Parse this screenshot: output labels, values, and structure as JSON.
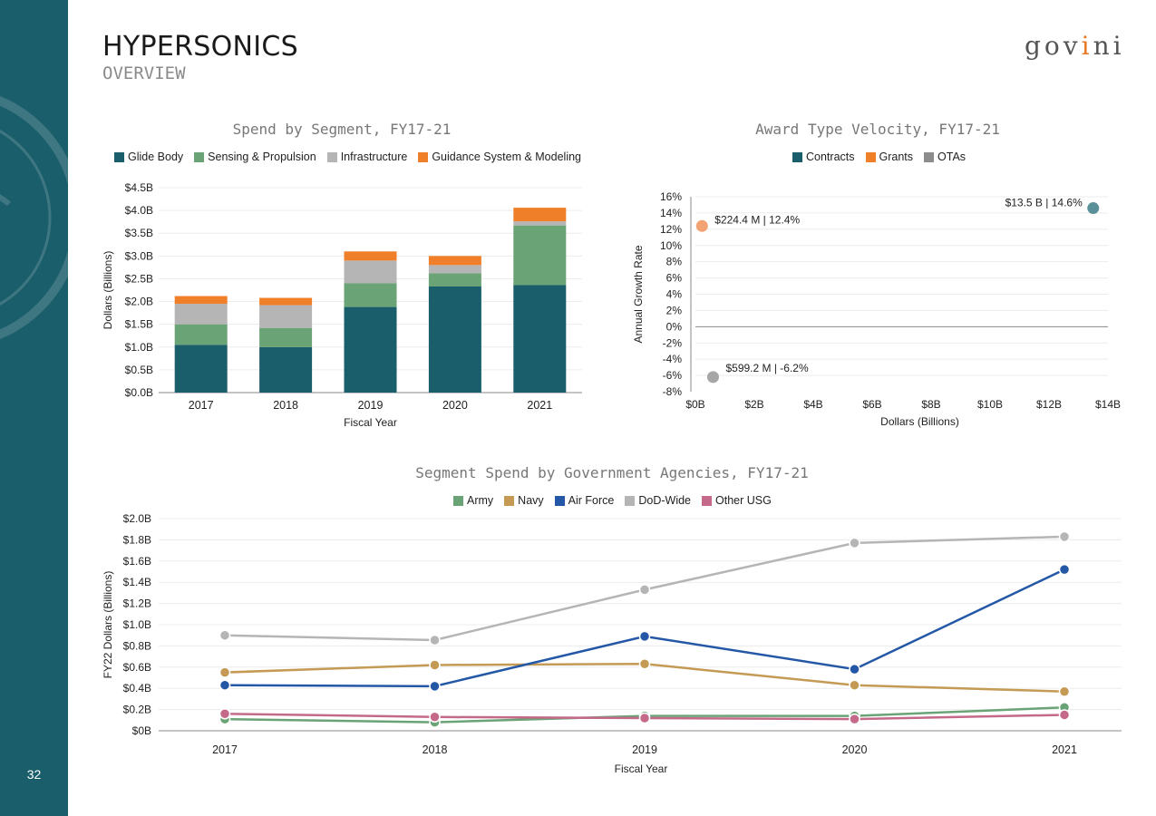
{
  "page": {
    "title": "HYPERSONICS",
    "subtitle": "OVERVIEW",
    "logo": {
      "prefix": "gov",
      "dot_letter": "i",
      "middle": "n",
      "suffix": "i"
    },
    "page_number": "32",
    "sidebar_color": "#1b5e6b"
  },
  "chart_data": [
    {
      "id": "spend_by_segment",
      "type": "bar",
      "stacked": true,
      "title": "Spend by Segment, FY17-21",
      "xlabel": "Fiscal Year",
      "ylabel": "Dollars (Billions)",
      "categories": [
        "2017",
        "2018",
        "2019",
        "2020",
        "2021"
      ],
      "ylim": [
        0,
        4.5
      ],
      "yticks": [
        "$0.0B",
        "$0.5B",
        "$1.0B",
        "$1.5B",
        "$2.0B",
        "$2.5B",
        "$3.0B",
        "$3.5B",
        "$4.0B",
        "$4.5B"
      ],
      "legend_position": "top",
      "grid": true,
      "series": [
        {
          "name": "Glide Body",
          "color": "#1b5e6b",
          "values": [
            1.05,
            1.0,
            1.88,
            2.33,
            2.36
          ]
        },
        {
          "name": "Sensing & Propulsion",
          "color": "#6aa375",
          "values": [
            0.45,
            0.42,
            0.52,
            0.29,
            1.31
          ]
        },
        {
          "name": "Infrastructure",
          "color": "#b5b5b5",
          "values": [
            0.45,
            0.5,
            0.5,
            0.18,
            0.09
          ]
        },
        {
          "name": "Guidance System & Modeling",
          "color": "#f07f2a",
          "values": [
            0.17,
            0.16,
            0.2,
            0.2,
            0.3
          ]
        }
      ]
    },
    {
      "id": "award_type_velocity",
      "type": "scatter",
      "title": "Award Type Velocity, FY17-21",
      "xlabel": "Dollars (Billions)",
      "ylabel": "Annual Growth Rate",
      "xlim": [
        0,
        14
      ],
      "ylim": [
        -8,
        16
      ],
      "xticks": [
        "$0B",
        "$2B",
        "$4B",
        "$6B",
        "$8B",
        "$10B",
        "$12B",
        "$14B"
      ],
      "yticks": [
        "-8%",
        "-6%",
        "-4%",
        "-2%",
        "0%",
        "2%",
        "4%",
        "6%",
        "8%",
        "10%",
        "12%",
        "14%",
        "16%"
      ],
      "legend_position": "top",
      "grid": true,
      "series": [
        {
          "name": "Contracts",
          "color": "#1b5e6b",
          "point_color": "#5a9199",
          "points": [
            {
              "x": 13.5,
              "y": 14.6,
              "label": "$13.5 B | 14.6%"
            }
          ]
        },
        {
          "name": "Grants",
          "color": "#f07f2a",
          "point_color": "#f2a273",
          "points": [
            {
              "x": 0.2244,
              "y": 12.4,
              "label": "$224.4 M | 12.4%"
            }
          ]
        },
        {
          "name": "OTAs",
          "color": "#8c8c8c",
          "point_color": "#a6a6a6",
          "points": [
            {
              "x": 0.5992,
              "y": -6.2,
              "label": "$599.2 M | -6.2%"
            }
          ]
        }
      ]
    },
    {
      "id": "segment_spend_by_agency",
      "type": "line",
      "title": "Segment Spend by Government Agencies, FY17-21",
      "xlabel": "Fiscal Year",
      "ylabel": "FY22 Dollars (Billions)",
      "categories": [
        "2017",
        "2018",
        "2019",
        "2020",
        "2021"
      ],
      "ylim": [
        0,
        2.0
      ],
      "yticks": [
        "$0B",
        "$0.2B",
        "$0.4B",
        "$0.6B",
        "$0.8B",
        "$1.0B",
        "$1.2B",
        "$1.4B",
        "$1.6B",
        "$1.8B",
        "$2.0B"
      ],
      "legend_position": "top",
      "grid": true,
      "series": [
        {
          "name": "Army",
          "color": "#6aa375",
          "values": [
            0.11,
            0.08,
            0.14,
            0.14,
            0.22
          ]
        },
        {
          "name": "Navy",
          "color": "#c49a55",
          "values": [
            0.55,
            0.62,
            0.63,
            0.43,
            0.37
          ]
        },
        {
          "name": "Air Force",
          "color": "#2458a6",
          "values": [
            0.43,
            0.42,
            0.89,
            0.58,
            1.52
          ]
        },
        {
          "name": "DoD-Wide",
          "color": "#b5b5b5",
          "values": [
            0.9,
            0.855,
            1.33,
            1.77,
            1.83
          ]
        },
        {
          "name": "Other USG",
          "color": "#c4698a",
          "values": [
            0.16,
            0.13,
            0.12,
            0.11,
            0.15
          ]
        }
      ]
    }
  ]
}
